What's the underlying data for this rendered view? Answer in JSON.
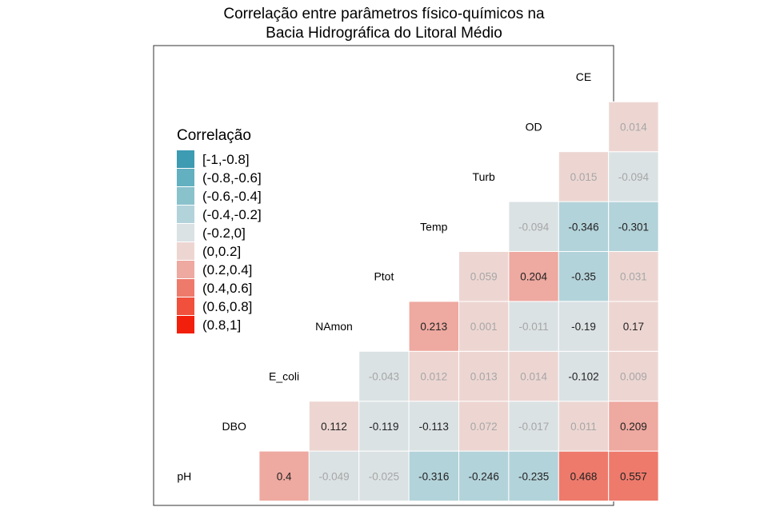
{
  "title_lines": [
    "Correlação entre parâmetros físico-químicos na",
    "Bacia Hidrográfica do Litoral Médio"
  ],
  "chart_data": {
    "type": "heatmap",
    "variables": [
      "pH",
      "DBO",
      "E_coli",
      "NAmon",
      "Ptot",
      "Temp",
      "Turb",
      "OD",
      "CE"
    ],
    "cells": [
      {
        "row": "DBO",
        "col": "pH",
        "value": "0.4"
      },
      {
        "row": "E_coli",
        "col": "pH",
        "value": "-0.049"
      },
      {
        "row": "E_coli",
        "col": "DBO",
        "value": "0.112"
      },
      {
        "row": "NAmon",
        "col": "pH",
        "value": "-0.025"
      },
      {
        "row": "NAmon",
        "col": "DBO",
        "value": "-0.119"
      },
      {
        "row": "NAmon",
        "col": "E_coli",
        "value": "-0.043"
      },
      {
        "row": "Ptot",
        "col": "pH",
        "value": "-0.316"
      },
      {
        "row": "Ptot",
        "col": "DBO",
        "value": "-0.113"
      },
      {
        "row": "Ptot",
        "col": "E_coli",
        "value": "0.012"
      },
      {
        "row": "Ptot",
        "col": "NAmon",
        "value": "0.213"
      },
      {
        "row": "Temp",
        "col": "pH",
        "value": "-0.246"
      },
      {
        "row": "Temp",
        "col": "DBO",
        "value": "0.072"
      },
      {
        "row": "Temp",
        "col": "E_coli",
        "value": "0.013"
      },
      {
        "row": "Temp",
        "col": "NAmon",
        "value": "0.001"
      },
      {
        "row": "Temp",
        "col": "Ptot",
        "value": "0.059"
      },
      {
        "row": "Turb",
        "col": "pH",
        "value": "-0.235"
      },
      {
        "row": "Turb",
        "col": "DBO",
        "value": "-0.017"
      },
      {
        "row": "Turb",
        "col": "E_coli",
        "value": "0.014"
      },
      {
        "row": "Turb",
        "col": "NAmon",
        "value": "-0.011"
      },
      {
        "row": "Turb",
        "col": "Ptot",
        "value": "0.204"
      },
      {
        "row": "Turb",
        "col": "Temp",
        "value": "-0.094"
      },
      {
        "row": "OD",
        "col": "pH",
        "value": "0.468"
      },
      {
        "row": "OD",
        "col": "DBO",
        "value": "0.011"
      },
      {
        "row": "OD",
        "col": "E_coli",
        "value": "-0.102"
      },
      {
        "row": "OD",
        "col": "NAmon",
        "value": "-0.19"
      },
      {
        "row": "OD",
        "col": "Ptot",
        "value": "-0.35"
      },
      {
        "row": "OD",
        "col": "Temp",
        "value": "-0.346"
      },
      {
        "row": "OD",
        "col": "Turb",
        "value": "0.015"
      },
      {
        "row": "CE",
        "col": "pH",
        "value": "0.557"
      },
      {
        "row": "CE",
        "col": "DBO",
        "value": "0.209"
      },
      {
        "row": "CE",
        "col": "E_coli",
        "value": "0.009"
      },
      {
        "row": "CE",
        "col": "NAmon",
        "value": "0.17"
      },
      {
        "row": "CE",
        "col": "Ptot",
        "value": "0.031"
      },
      {
        "row": "CE",
        "col": "Temp",
        "value": "-0.301"
      },
      {
        "row": "CE",
        "col": "Turb",
        "value": "-0.094"
      },
      {
        "row": "CE",
        "col": "OD",
        "value": "0.014"
      }
    ],
    "legend": {
      "title": "Correlação",
      "position": "top-left",
      "bins": [
        {
          "label": "[-1,-0.8]",
          "color": "#3d9bb2"
        },
        {
          "label": "(-0.8,-0.6]",
          "color": "#62b0c0"
        },
        {
          "label": "(-0.6,-0.4]",
          "color": "#8ac2cc"
        },
        {
          "label": "(-0.4,-0.2]",
          "color": "#b3d3da"
        },
        {
          "label": "(-0.2,0]",
          "color": "#dbe2e4"
        },
        {
          "label": "(0,0.2]",
          "color": "#edd6d2"
        },
        {
          "label": "(0.2,0.4]",
          "color": "#eea9a0"
        },
        {
          "label": "(0.4,0.6]",
          "color": "#ee7a6c"
        },
        {
          "label": "(0.6,0.8]",
          "color": "#f0503c"
        },
        {
          "label": "(0.8,1]",
          "color": "#f21f0c"
        }
      ]
    },
    "label_colors": {
      "strong": "#222222",
      "weak": "#a6a6a6"
    }
  }
}
